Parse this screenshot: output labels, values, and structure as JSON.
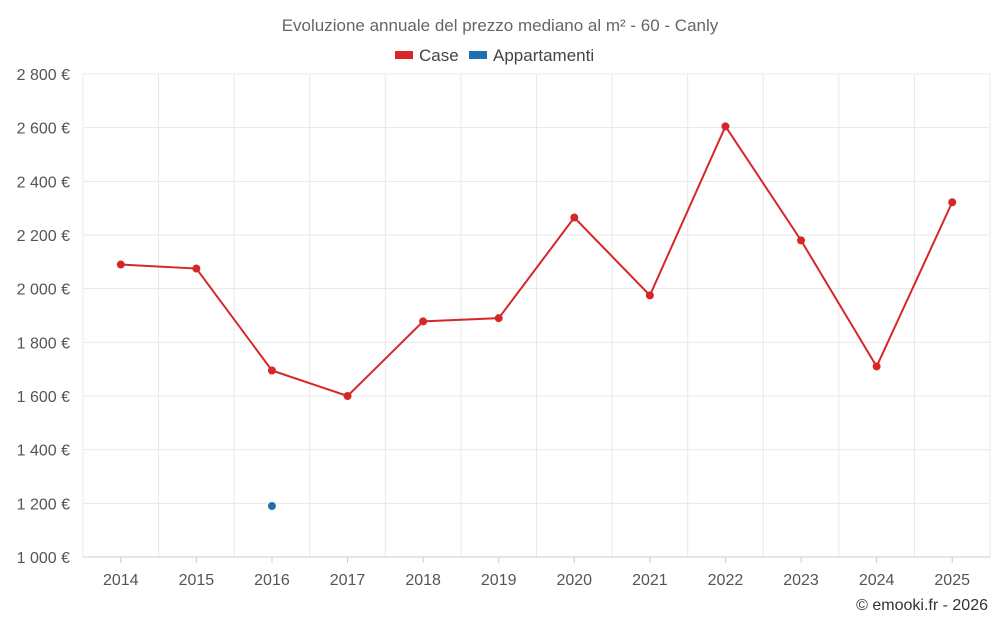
{
  "chart_data": {
    "type": "line",
    "title": "Evoluzione annuale del prezzo mediano al m² - 60 - Canly",
    "categories": [
      "2014",
      "2015",
      "2016",
      "2017",
      "2018",
      "2019",
      "2020",
      "2021",
      "2022",
      "2023",
      "2024",
      "2025"
    ],
    "series": [
      {
        "name": "Case",
        "color": "#d62728",
        "values": [
          2090,
          2075,
          1695,
          1600,
          1878,
          1890,
          2265,
          1975,
          2605,
          2180,
          1710,
          2322
        ]
      },
      {
        "name": "Appartamenti",
        "color": "#1f6fb2",
        "values": [
          null,
          null,
          1190,
          null,
          null,
          null,
          null,
          null,
          null,
          null,
          null,
          null
        ]
      }
    ],
    "ylim": [
      1000,
      2800
    ],
    "yticks": [
      1000,
      1200,
      1400,
      1600,
      1800,
      2000,
      2200,
      2400,
      2600,
      2800
    ],
    "ytick_labels": [
      "1 000 €",
      "1 200 €",
      "1 400 €",
      "1 600 €",
      "1 800 €",
      "2 000 €",
      "2 200 €",
      "2 400 €",
      "2 600 €",
      "2 800 €"
    ],
    "grid": true,
    "legend_position": "top-center"
  },
  "credit": "© emooki.fr - 2026"
}
